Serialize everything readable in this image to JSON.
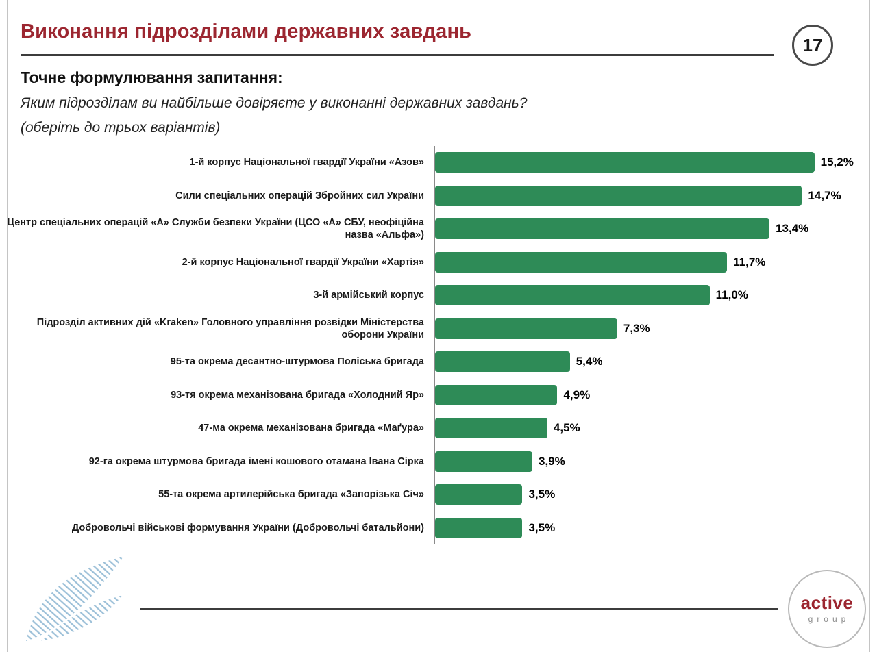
{
  "slide": {
    "title": "Виконання підрозділами державних завдань",
    "page_number": "17",
    "question_heading": "Точне формулювання запитання:",
    "question_line1": "Яким підрозділам ви найбільше довіряєте у виконанні державних завдань?",
    "question_line2": "(оберіть до трьох варіантів)"
  },
  "chart_data": {
    "type": "bar",
    "orientation": "horizontal",
    "title": "",
    "xlabel": "",
    "ylabel": "",
    "xlim": [
      0,
      16
    ],
    "grid": false,
    "legend": false,
    "bar_color": "#2E8B57",
    "categories": [
      "1-й корпус Національної гвардії України «Азов»",
      "Сили спеціальних операцій Збройних сил України",
      "Центр спеціальних операцій «А» Служби безпеки України (ЦСО «А» СБУ, неофіційна назва «Альфа»)",
      "2-й корпус Національної гвардії України «Хартія»",
      "3-й армійський корпус",
      "Підрозділ активних дій «Kraken» Головного управління розвідки Міністерства оборони України",
      "95-та окрема десантно-штурмова Поліська бригада",
      "93-тя окрема механізована бригада «Холодний Яр»",
      "47-ма окрема механізована бригада «Маґура»",
      "92-га окрема штурмова бригада імені кошового отамана Івана Сірка",
      "55-та окрема артилерійська бригада «Запорізька Січ»",
      "Добровольчі військові формування України (Добровольчі батальйони)"
    ],
    "values": [
      15.2,
      14.7,
      13.4,
      11.7,
      11.0,
      7.3,
      5.4,
      4.9,
      4.5,
      3.9,
      3.5,
      3.5
    ],
    "value_labels": [
      "15,2%",
      "14,7%",
      "13,4%",
      "11,7%",
      "11,0%",
      "7,3%",
      "5,4%",
      "4,9%",
      "4,5%",
      "3,9%",
      "3,5%",
      "3,5%"
    ]
  },
  "footer": {
    "logo_text_primary": "active",
    "logo_text_secondary": "group"
  },
  "colors": {
    "accent_red": "#9C2630",
    "bar_green": "#2E8B57",
    "line_dark": "#3C3C3C",
    "text_dark": "#1A1A1A",
    "logo_blue": "#9CC0D8",
    "gray": "#8C8C8C"
  }
}
